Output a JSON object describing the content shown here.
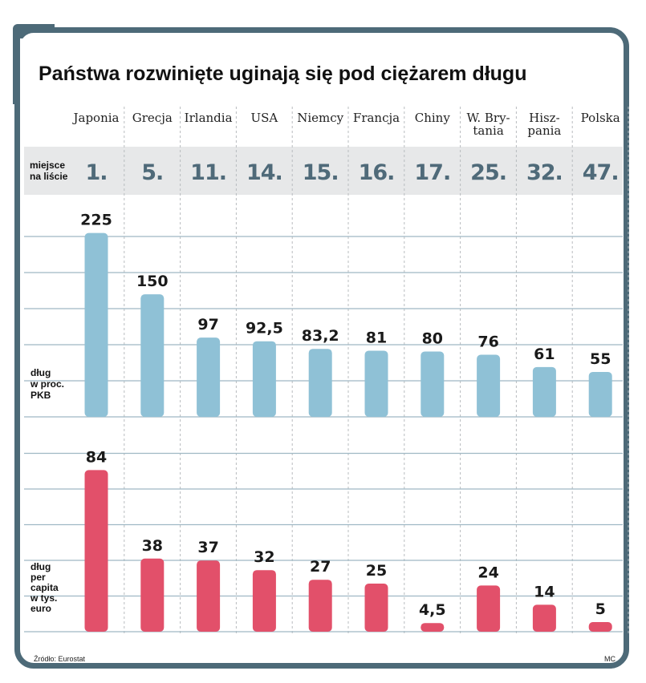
{
  "chart_data": [
    {
      "type": "bar",
      "title": "Państwa rozwinięte uginają się pod ciężarem długu",
      "categories": [
        [
          "Japonia"
        ],
        [
          "Grecja"
        ],
        [
          "Irlandia"
        ],
        [
          "USA"
        ],
        [
          "Niemcy"
        ],
        [
          "Francja"
        ],
        [
          "Chiny"
        ],
        [
          "W. Bry-",
          "tania"
        ],
        [
          "Hisz-",
          "pania"
        ],
        [
          "Polska"
        ]
      ],
      "rank_label": [
        "miejsce",
        "na liście"
      ],
      "ranks": [
        "1.",
        "5.",
        "11.",
        "14.",
        "15.",
        "16.",
        "17.",
        "25.",
        "32.",
        "47."
      ],
      "ylabel": [
        "dług",
        "w proc.",
        "PKB"
      ],
      "values": [
        225,
        150,
        97,
        92.5,
        83.2,
        81,
        80,
        76,
        61,
        55
      ],
      "value_labels": [
        "225",
        "150",
        "97",
        "92,5",
        "83,2",
        "81",
        "80",
        "76",
        "61",
        "55"
      ],
      "ylim": [
        0,
        260
      ],
      "color": "#8fc1d6",
      "grid": true
    },
    {
      "type": "bar",
      "ylabel": [
        "dług",
        "per",
        "capita",
        "w tys.",
        "euro"
      ],
      "values": [
        84,
        38,
        37,
        32,
        27,
        25,
        4.5,
        24,
        14,
        5
      ],
      "value_labels": [
        "84",
        "38",
        "37",
        "32",
        "27",
        "25",
        "4,5",
        "24",
        "14",
        "5"
      ],
      "ylim": [
        0,
        95
      ],
      "color": "#e2506a",
      "grid": true
    }
  ],
  "source": "Źródło: Eurostat",
  "author": "MC"
}
